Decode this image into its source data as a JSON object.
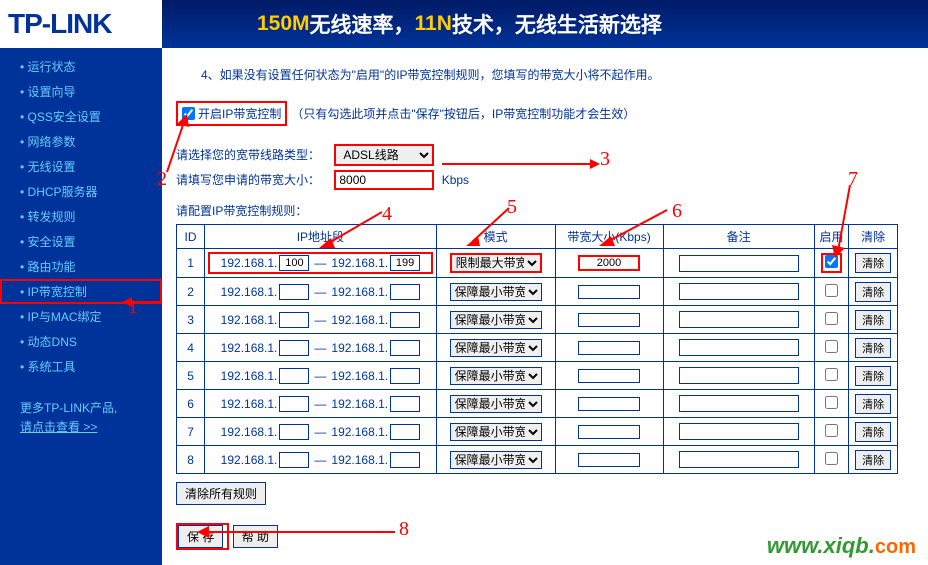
{
  "brand": "TP-LINK",
  "banner": {
    "part1": "150M",
    "part2": "无线速率，",
    "part3": "11N",
    "part4": "技术，无线生活新选择"
  },
  "sidebar": {
    "items": [
      {
        "label": "运行状态"
      },
      {
        "label": "设置向导"
      },
      {
        "label": "QSS安全设置"
      },
      {
        "label": "网络参数"
      },
      {
        "label": "无线设置"
      },
      {
        "label": "DHCP服务器"
      },
      {
        "label": "转发规则"
      },
      {
        "label": "安全设置"
      },
      {
        "label": "路由功能"
      },
      {
        "label": "IP带宽控制",
        "active": true
      },
      {
        "label": "IP与MAC绑定"
      },
      {
        "label": "动态DNS"
      },
      {
        "label": "系统工具"
      }
    ],
    "more_line1": "更多TP-LINK产品,",
    "more_line2": "请点击查看 >>"
  },
  "main": {
    "note": "4、如果没有设置任何状态为\"启用\"的IP带宽控制规则，您填写的带宽大小将不起作用。",
    "enable_label": "开启IP带宽控制",
    "enable_hint": "（只有勾选此项并点击\"保存\"按钮后，IP带宽控制功能才会生效）",
    "line_type_label": "请选择您的宽带线路类型：",
    "line_type_value": "ADSL线路",
    "bandwidth_label": "请填写您申请的带宽大小：",
    "bandwidth_value": "8000",
    "bandwidth_unit": "Kbps",
    "rules_label": "请配置IP带宽控制规则：",
    "th": {
      "id": "ID",
      "ip": "IP地址段",
      "mode": "模式",
      "bw": "带宽大小(Kbps)",
      "remark": "备注",
      "enable": "启用",
      "clear": "清除"
    },
    "mode_limit": "限制最大带宽",
    "mode_guarantee": "保障最小带宽",
    "rows": [
      {
        "id": "1",
        "ip1": "100",
        "ip2": "199",
        "mode": "限制最大带宽",
        "bw": "2000",
        "enabled": true
      },
      {
        "id": "2",
        "ip1": "",
        "ip2": "",
        "mode": "保障最小带宽",
        "bw": "",
        "enabled": false
      },
      {
        "id": "3",
        "ip1": "",
        "ip2": "",
        "mode": "保障最小带宽",
        "bw": "",
        "enabled": false
      },
      {
        "id": "4",
        "ip1": "",
        "ip2": "",
        "mode": "保障最小带宽",
        "bw": "",
        "enabled": false
      },
      {
        "id": "5",
        "ip1": "",
        "ip2": "",
        "mode": "保障最小带宽",
        "bw": "",
        "enabled": false
      },
      {
        "id": "6",
        "ip1": "",
        "ip2": "",
        "mode": "保障最小带宽",
        "bw": "",
        "enabled": false
      },
      {
        "id": "7",
        "ip1": "",
        "ip2": "",
        "mode": "保障最小带宽",
        "bw": "",
        "enabled": false
      },
      {
        "id": "8",
        "ip1": "",
        "ip2": "",
        "mode": "保障最小带宽",
        "bw": "",
        "enabled": false
      }
    ],
    "clear_btn": "清除",
    "clear_all": "清除所有规则",
    "save": "保 存",
    "help": "帮 助"
  },
  "annotations": {
    "n1": "1",
    "n2": "2",
    "n3": "3",
    "n4": "4",
    "n5": "5",
    "n6": "6",
    "n7": "7",
    "n8": "8"
  },
  "watermark": {
    "url": "www.xiqb.",
    "cn": "com"
  },
  "colors": {
    "brand_blue": "#003399",
    "banner_yellow": "#ffcc00",
    "sidebar_link": "#66ccff",
    "annotation_red": "#ff0000"
  }
}
